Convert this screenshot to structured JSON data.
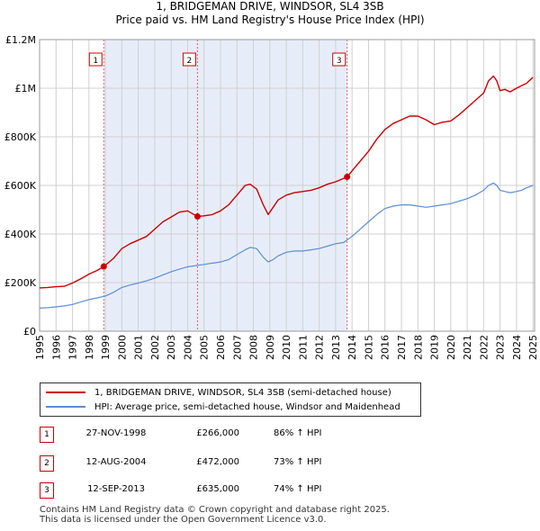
{
  "chart_data": {
    "type": "line",
    "title": "1, BRIDGEMAN DRIVE, WINDSOR, SL4 3SB",
    "subtitle": "Price paid vs. HM Land Registry's House Price Index (HPI)",
    "xlabel": "",
    "ylabel": "",
    "xlim": [
      1995,
      2025.1
    ],
    "ylim": [
      0,
      1200000
    ],
    "x_ticks": [
      "1995",
      "1996",
      "1997",
      "1998",
      "1999",
      "2000",
      "2001",
      "2002",
      "2003",
      "2004",
      "2005",
      "2006",
      "2007",
      "2008",
      "2009",
      "2010",
      "2011",
      "2012",
      "2013",
      "2014",
      "2015",
      "2016",
      "2017",
      "2018",
      "2019",
      "2020",
      "2021",
      "2022",
      "2023",
      "2024",
      "2025"
    ],
    "y_ticks": [
      {
        "value": 0,
        "label": "£0"
      },
      {
        "value": 200000,
        "label": "£200K"
      },
      {
        "value": 400000,
        "label": "£400K"
      },
      {
        "value": 600000,
        "label": "£600K"
      },
      {
        "value": 800000,
        "label": "£800K"
      },
      {
        "value": 1000000,
        "label": "£1M"
      },
      {
        "value": 1200000,
        "label": "£1.2M"
      }
    ],
    "grid": true,
    "series": [
      {
        "name": "1, BRIDGEMAN DRIVE, WINDSOR, SL4 3SB (semi-detached house)",
        "color": "#cc0000",
        "x": [
          1995.0,
          1995.5,
          1996.0,
          1996.5,
          1997.0,
          1997.5,
          1998.0,
          1998.5,
          1998.9,
          1999.5,
          2000.0,
          2000.5,
          2001.0,
          2001.5,
          2002.0,
          2002.5,
          2003.0,
          2003.5,
          2004.0,
          2004.6,
          2005.0,
          2005.5,
          2006.0,
          2006.5,
          2007.0,
          2007.5,
          2007.8,
          2008.2,
          2008.6,
          2008.9,
          2009.2,
          2009.5,
          2010.0,
          2010.5,
          2011.0,
          2011.5,
          2012.0,
          2012.5,
          2013.0,
          2013.7,
          2014.0,
          2014.5,
          2015.0,
          2015.5,
          2016.0,
          2016.5,
          2017.0,
          2017.5,
          2018.0,
          2018.5,
          2019.0,
          2019.5,
          2020.0,
          2020.5,
          2021.0,
          2021.5,
          2022.0,
          2022.3,
          2022.6,
          2022.8,
          2023.0,
          2023.3,
          2023.6,
          2024.0,
          2024.3,
          2024.6,
          2025.0
        ],
        "y": [
          178000,
          180000,
          183000,
          185000,
          198000,
          215000,
          235000,
          250000,
          266000,
          300000,
          340000,
          360000,
          375000,
          390000,
          420000,
          450000,
          470000,
          490000,
          495000,
          472000,
          475000,
          480000,
          495000,
          520000,
          560000,
          600000,
          605000,
          585000,
          520000,
          480000,
          510000,
          540000,
          560000,
          570000,
          575000,
          580000,
          590000,
          605000,
          615000,
          635000,
          660000,
          700000,
          740000,
          790000,
          830000,
          855000,
          870000,
          885000,
          885000,
          870000,
          850000,
          860000,
          865000,
          890000,
          920000,
          950000,
          980000,
          1030000,
          1050000,
          1030000,
          990000,
          995000,
          985000,
          1000000,
          1010000,
          1020000,
          1045000
        ]
      },
      {
        "name": "HPI: Average price, semi-detached house, Windsor and Maidenhead",
        "color": "#5b8ed6",
        "x": [
          1995.0,
          1995.5,
          1996.0,
          1996.5,
          1997.0,
          1997.5,
          1998.0,
          1998.5,
          1999.0,
          1999.5,
          2000.0,
          2000.5,
          2001.0,
          2001.5,
          2002.0,
          2002.5,
          2003.0,
          2003.5,
          2004.0,
          2004.5,
          2005.0,
          2005.5,
          2006.0,
          2006.5,
          2007.0,
          2007.5,
          2007.8,
          2008.2,
          2008.6,
          2008.9,
          2009.2,
          2009.5,
          2010.0,
          2010.5,
          2011.0,
          2011.5,
          2012.0,
          2012.5,
          2013.0,
          2013.5,
          2014.0,
          2014.5,
          2015.0,
          2015.5,
          2016.0,
          2016.5,
          2017.0,
          2017.5,
          2018.0,
          2018.5,
          2019.0,
          2019.5,
          2020.0,
          2020.5,
          2021.0,
          2021.5,
          2022.0,
          2022.3,
          2022.6,
          2022.8,
          2023.0,
          2023.3,
          2023.6,
          2024.0,
          2024.3,
          2024.6,
          2025.0
        ],
        "y": [
          95000,
          97000,
          100000,
          104000,
          110000,
          120000,
          130000,
          137000,
          145000,
          160000,
          180000,
          190000,
          198000,
          207000,
          218000,
          232000,
          245000,
          255000,
          265000,
          270000,
          275000,
          280000,
          285000,
          295000,
          315000,
          335000,
          345000,
          340000,
          305000,
          285000,
          295000,
          310000,
          325000,
          330000,
          330000,
          335000,
          340000,
          350000,
          360000,
          365000,
          390000,
          420000,
          450000,
          480000,
          505000,
          515000,
          520000,
          520000,
          515000,
          510000,
          515000,
          520000,
          525000,
          535000,
          545000,
          560000,
          580000,
          600000,
          610000,
          600000,
          580000,
          575000,
          570000,
          575000,
          580000,
          590000,
          600000
        ]
      }
    ],
    "sales": [
      {
        "label": "1",
        "x": 1998.9,
        "y": 266000
      },
      {
        "label": "2",
        "x": 2004.6,
        "y": 472000
      },
      {
        "label": "3",
        "x": 2013.7,
        "y": 635000
      }
    ]
  },
  "legend": {
    "items": [
      {
        "label": "1, BRIDGEMAN DRIVE, WINDSOR, SL4 3SB (semi-detached house)",
        "color": "#cc0000"
      },
      {
        "label": "HPI: Average price, semi-detached house, Windsor and Maidenhead",
        "color": "#5b8ed6"
      }
    ]
  },
  "transactions": [
    {
      "num": "1",
      "date": "27-NOV-1998",
      "price": "£266,000",
      "hpi": "86% ↑ HPI"
    },
    {
      "num": "2",
      "date": "12-AUG-2004",
      "price": "£472,000",
      "hpi": "73% ↑ HPI"
    },
    {
      "num": "3",
      "date": "12-SEP-2013",
      "price": "£635,000",
      "hpi": "74% ↑ HPI"
    }
  ],
  "footer": {
    "line1": "Contains HM Land Registry data © Crown copyright and database right 2025.",
    "line2": "This data is licensed under the Open Government Licence v3.0."
  },
  "colors": {
    "property": "#cc0000",
    "hpi": "#5b8ed6",
    "grid": "#d0d0d0",
    "shade": "#dde6f5"
  }
}
